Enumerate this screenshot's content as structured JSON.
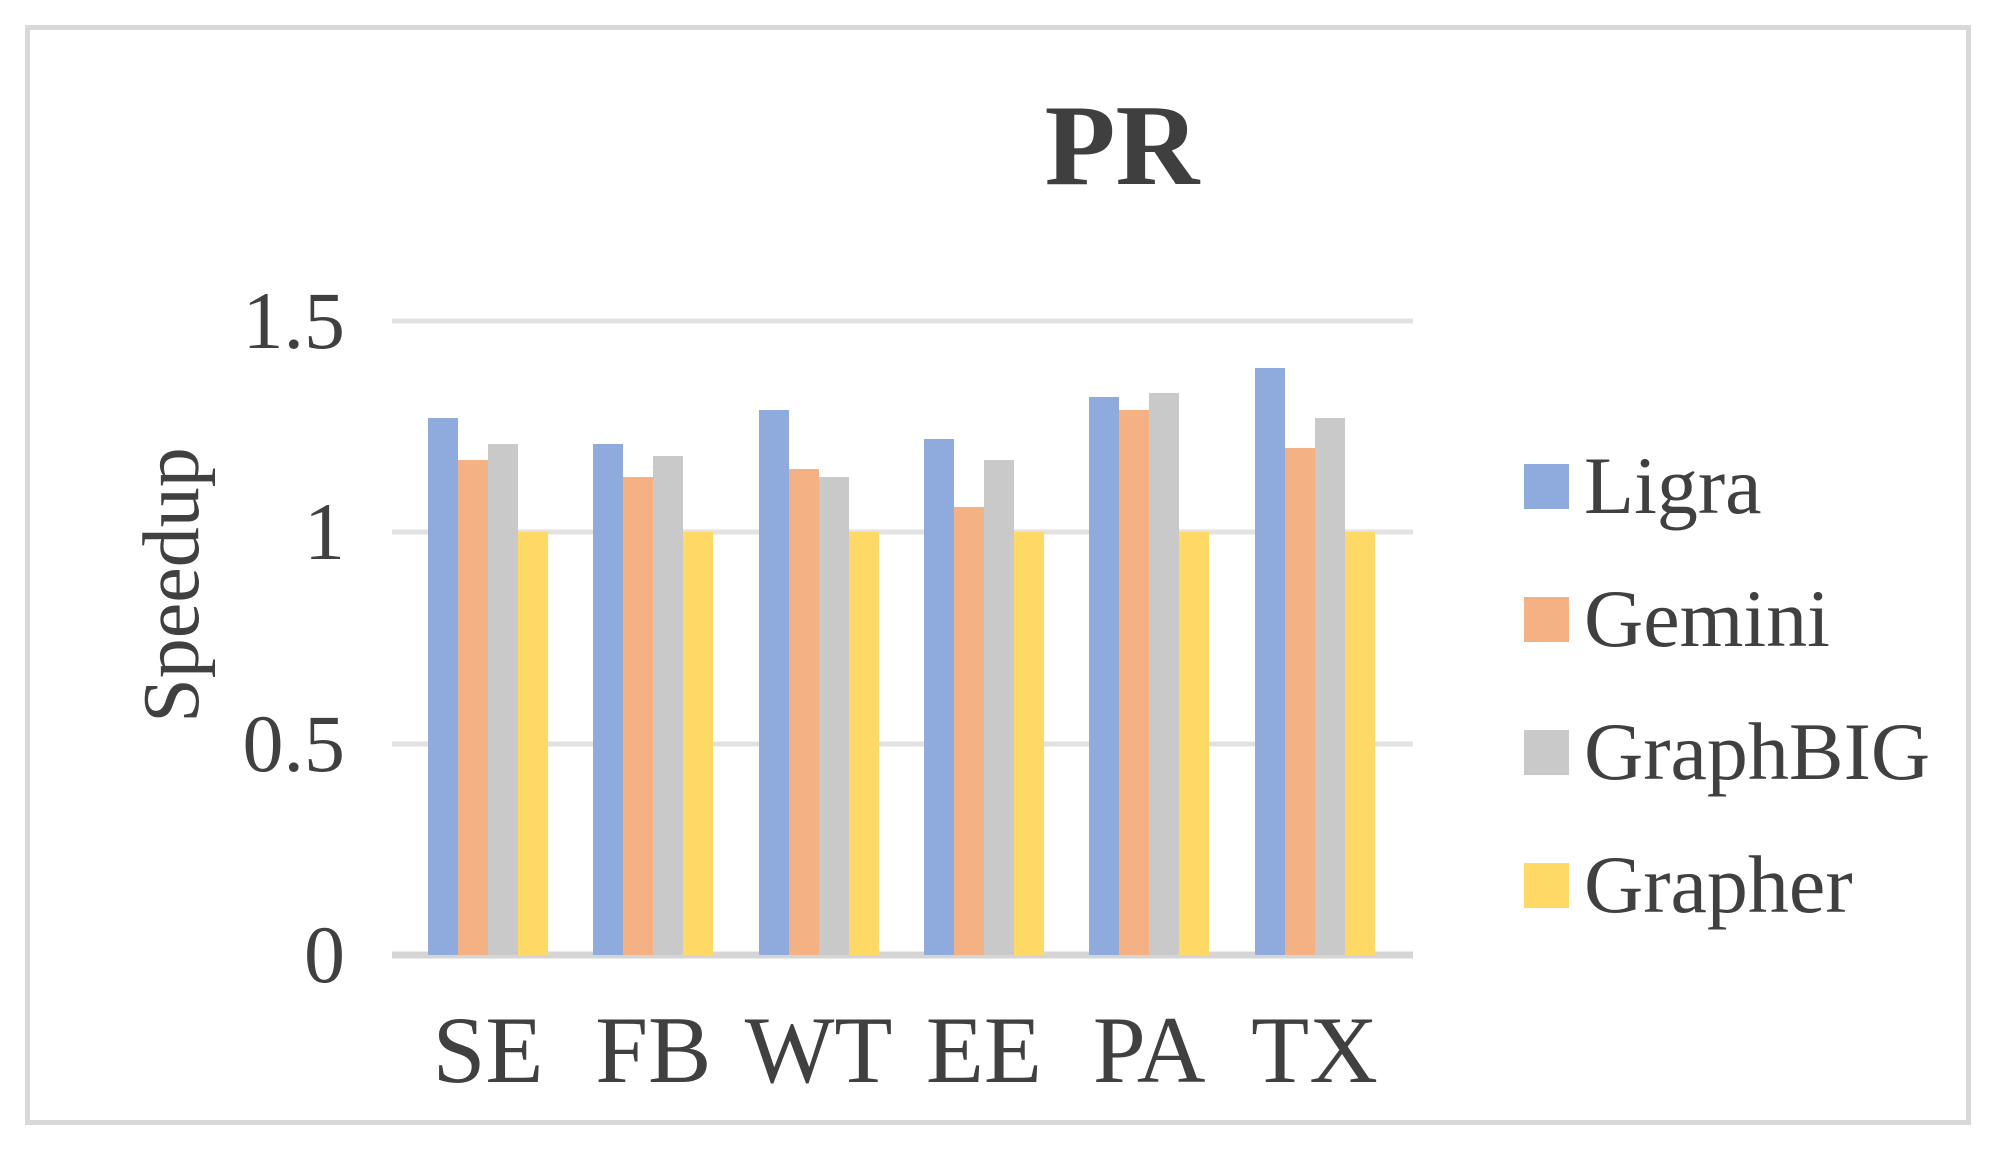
{
  "chart_data": {
    "type": "bar",
    "title": "PR",
    "ylabel": "Speedup",
    "xlabel": "",
    "categories": [
      "SE",
      "FB",
      "WT",
      "EE",
      "PA",
      "TX"
    ],
    "series": [
      {
        "name": "Ligra",
        "color": "#8faadc",
        "values": [
          1.27,
          1.21,
          1.29,
          1.22,
          1.32,
          1.39
        ]
      },
      {
        "name": "Gemini",
        "color": "#f4b183",
        "values": [
          1.17,
          1.13,
          1.15,
          1.06,
          1.29,
          1.2
        ]
      },
      {
        "name": "GraphBIG",
        "color": "#c9c9c9",
        "values": [
          1.21,
          1.18,
          1.13,
          1.17,
          1.33,
          1.27
        ]
      },
      {
        "name": "Grapher",
        "color": "#ffd966",
        "values": [
          1.0,
          1.0,
          1.0,
          1.0,
          1.0,
          1.0
        ]
      }
    ],
    "ylim": [
      0,
      1.5
    ],
    "yticks": [
      0,
      0.5,
      1,
      1.5
    ],
    "ytick_labels": [
      "0",
      "0.5",
      "1",
      "1.5"
    ],
    "grid": true,
    "legend_position": "right",
    "colors": {
      "text": "#404040",
      "gridline": "#e2e2e2",
      "axis_line": "#d5d5d5",
      "frame_border": "#d8d8d8",
      "background": "#ffffff"
    }
  }
}
